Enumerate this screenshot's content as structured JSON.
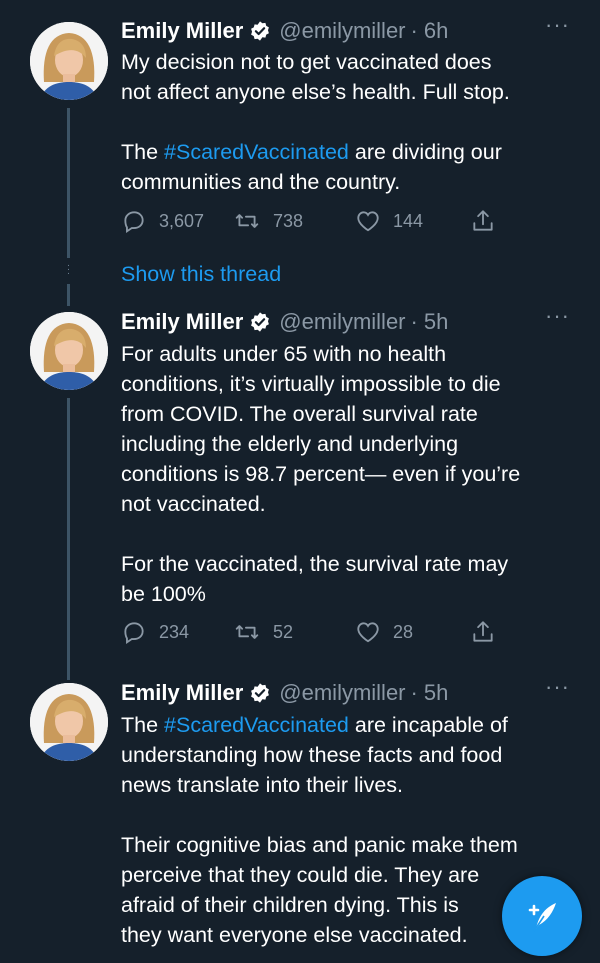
{
  "colors": {
    "background": "#15202b",
    "accent": "#1d9bf0",
    "secondary_text": "#8b98a5"
  },
  "tweets": [
    {
      "name": "Emily Miller",
      "handle": "@emilymiller",
      "separator": "·",
      "time": "6h",
      "more": "···",
      "lines": [
        "My decision not to get vaccinated does",
        "not affect anyone else’s health. Full stop.",
        "",
        "The ",
        "#ScaredVaccinated",
        " are dividing our",
        "communities and the country."
      ],
      "replies": "3,607",
      "retweets": "738",
      "likes": "144"
    },
    {
      "name": "Emily Miller",
      "handle": "@emilymiller",
      "separator": "·",
      "time": "5h",
      "more": "···",
      "lines": [
        "For adults under 65 with no health",
        "conditions, it’s virtually impossible to die",
        "from COVID. The overall survival rate",
        "including the elderly and underlying",
        "conditions is 98.7 percent— even if you’re",
        "not vaccinated.",
        "",
        "For the vaccinated, the survival rate may",
        "be 100%"
      ],
      "replies": "234",
      "retweets": "52",
      "likes": "28"
    },
    {
      "name": "Emily Miller",
      "handle": "@emilymiller",
      "separator": "·",
      "time": "5h",
      "more": "···",
      "lines": [
        "The ",
        "#ScaredVaccinated",
        " are incapable of",
        "understanding how these facts and food",
        "news translate into their lives.",
        "",
        "Their cognitive bias and panic make them",
        "perceive that they could die. They are",
        "afraid of their children dying. This is",
        "they want everyone else vaccinated."
      ]
    }
  ],
  "show_thread_label": "Show this thread",
  "icons": {
    "verified": "verified-badge-icon",
    "reply": "reply-icon",
    "retweet": "retweet-icon",
    "like": "heart-icon",
    "share": "share-icon",
    "compose": "compose-tweet-icon"
  }
}
